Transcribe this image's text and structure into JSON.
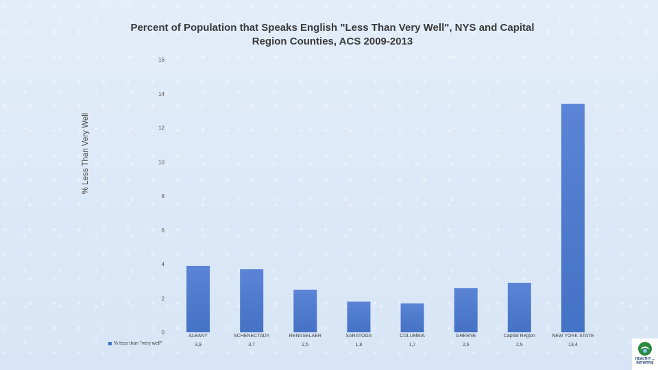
{
  "chart_data": {
    "type": "bar",
    "title": "Percent of Population that Speaks English \"Less Than Very Well\", NYS and Capital Region Counties, ACS 2009-2013",
    "xlabel": "",
    "ylabel": "% Less Than Very Well",
    "ylim": [
      0,
      16
    ],
    "yticks": [
      "0",
      "2",
      "4",
      "6",
      "8",
      "10",
      "12",
      "14",
      "16"
    ],
    "categories": [
      "ALBANY",
      "SCHENECTADY",
      "RENSSELAER",
      "SARATOGA",
      "COLUMBIA",
      "GREENE",
      "Capital Region",
      "NEW YORK STATE"
    ],
    "series": [
      {
        "name": "% less than \"very well\"",
        "values": [
          3.9,
          3.7,
          2.5,
          1.8,
          1.7,
          2.6,
          2.9,
          13.4
        ],
        "labels": [
          "3,9",
          "3,7",
          "2,5",
          "1,8",
          "1,7",
          "2,6",
          "2,9",
          "13,4"
        ],
        "color": "#4472c4"
      }
    ],
    "legend": "bottom-left (data table)",
    "grid": false
  },
  "logo": {
    "text": "HEALTHY ... INITIATIVE",
    "color": "#2a8a3e"
  }
}
